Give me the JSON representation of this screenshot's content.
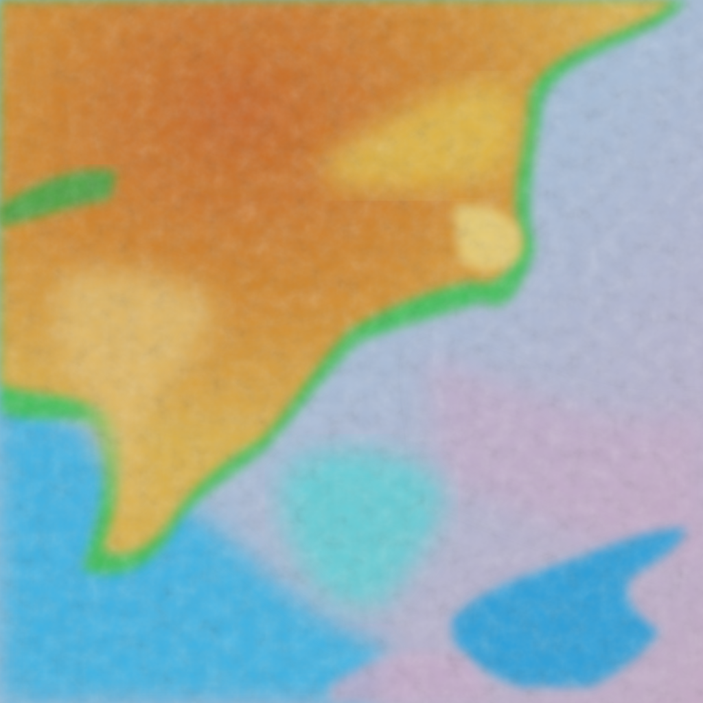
{
  "image": {
    "kind": "false-color satellite imagery",
    "colors": {
      "land_orange": "#c9732a",
      "land_yellow": "#d9b24a",
      "coast_green": "#3fbf5a",
      "sea_blue": "#3aaee0",
      "deep_sea": "#2f9fd8",
      "cloud_pink": "#b9b6d0",
      "cyan_patch": "#52d0d8"
    }
  }
}
